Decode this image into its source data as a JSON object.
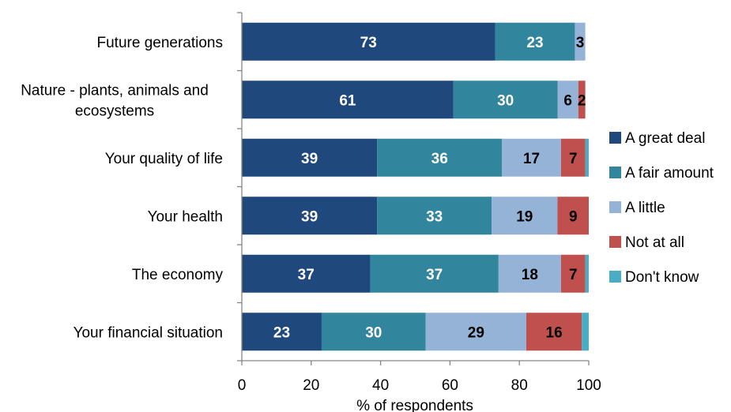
{
  "chart_data": {
    "type": "bar",
    "orientation": "horizontal",
    "stacked": true,
    "categories": [
      "Future generations",
      "Nature - plants, animals and ecosystems",
      "Your quality of life",
      "Your health",
      "The economy",
      "Your financial situation"
    ],
    "category_lines": [
      [
        "Future generations"
      ],
      [
        "Nature - plants, animals and",
        "ecosystems"
      ],
      [
        "Your quality of life"
      ],
      [
        "Your health"
      ],
      [
        "The economy"
      ],
      [
        "Your financial situation"
      ]
    ],
    "series": [
      {
        "name": "A great deal",
        "color": "#1F497D",
        "values": [
          73,
          61,
          39,
          39,
          37,
          23
        ],
        "labels": [
          "73",
          "61",
          "39",
          "39",
          "37",
          "23"
        ]
      },
      {
        "name": "A fair amount",
        "color": "#31859C",
        "values": [
          23,
          30,
          36,
          33,
          37,
          30
        ],
        "labels": [
          "23",
          "30",
          "36",
          "33",
          "37",
          "30"
        ]
      },
      {
        "name": "A little",
        "color": "#95B3D7",
        "values": [
          3,
          6,
          17,
          19,
          18,
          29
        ],
        "labels": [
          "3",
          "6",
          "17",
          "19",
          "18",
          "29"
        ]
      },
      {
        "name": "Not at all",
        "color": "#C0504D",
        "values": [
          0,
          2,
          7,
          9,
          7,
          16
        ],
        "labels": [
          "",
          "2",
          "7",
          "9",
          "7",
          "16"
        ]
      },
      {
        "name": "Don't know",
        "color": "#4BACC6",
        "values": [
          0,
          0,
          1,
          0,
          1,
          2
        ],
        "labels": [
          "",
          "",
          "",
          "",
          "",
          ""
        ]
      }
    ],
    "xlabel": "% of respondents",
    "ylabel": "",
    "xlim": [
      0,
      100
    ],
    "xticks": [
      0,
      20,
      40,
      60,
      80,
      100
    ],
    "grid": false,
    "legend": "right"
  }
}
